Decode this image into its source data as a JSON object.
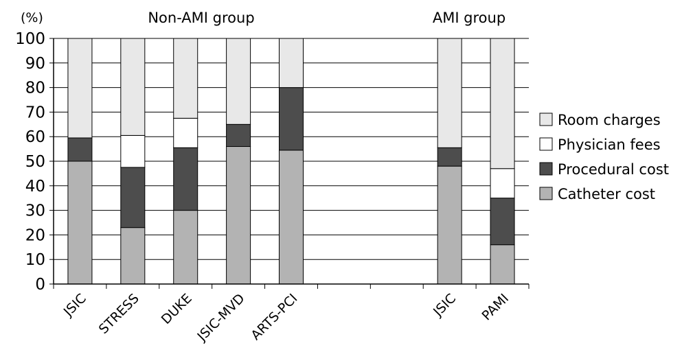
{
  "chart_data": {
    "type": "bar",
    "stacked": true,
    "ylabel": "(%)",
    "ylim": [
      0,
      100
    ],
    "yticks": [
      0,
      10,
      20,
      30,
      40,
      50,
      60,
      70,
      80,
      90,
      100
    ],
    "grid": true,
    "legend_position": "right",
    "groups": [
      {
        "label": "Non-AMI group",
        "categories": [
          "JSIC",
          "STRESS",
          "DUKE",
          "JSIC-MVD",
          "ARTS-PCI"
        ]
      },
      {
        "label": "AMI group",
        "categories": [
          "JSIC",
          "PAMI"
        ]
      }
    ],
    "slots": [
      "JSIC",
      "STRESS",
      "DUKE",
      "JSIC-MVD",
      "ARTS-PCI",
      "",
      "",
      "JSIC",
      "PAMI"
    ],
    "series": [
      {
        "name": "Catheter cost",
        "color": "#b3b3b3",
        "values": [
          50,
          23,
          30,
          56,
          54.5,
          null,
          null,
          48,
          16
        ]
      },
      {
        "name": "Procedural cost",
        "color": "#4d4d4d",
        "values": [
          9.5,
          24.5,
          25.5,
          9,
          25.5,
          null,
          null,
          7.5,
          19
        ]
      },
      {
        "name": "Physician fees",
        "color": "#ffffff",
        "values": [
          0,
          13,
          12,
          0,
          0,
          null,
          null,
          0,
          12
        ]
      },
      {
        "name": "Room  charges",
        "color": "#e8e8e8",
        "values": [
          40.5,
          39.5,
          32.5,
          35,
          20,
          null,
          null,
          44.5,
          53
        ]
      }
    ],
    "legend_order": [
      "Room  charges",
      "Physician fees",
      "Procedural cost",
      "Catheter cost"
    ]
  }
}
